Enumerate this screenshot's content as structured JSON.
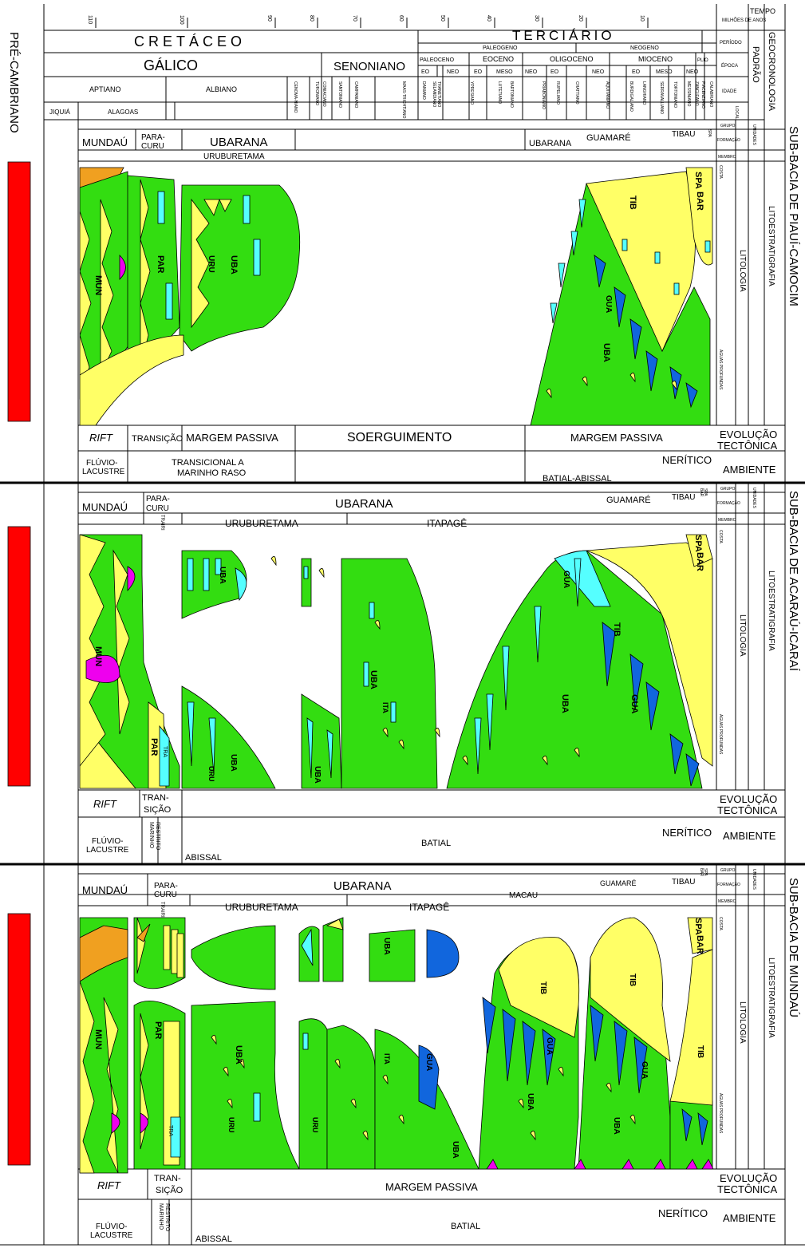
{
  "time_scale": {
    "header": "TEMPO MILHÕES DE ANOS",
    "ticks": [
      "110",
      "100",
      "90",
      "80",
      "70",
      "60",
      "50",
      "40",
      "30",
      "20",
      "10"
    ],
    "pre_cambrian": "PRÉ-CAMBRIANO"
  },
  "chronostrat": {
    "periods": [
      "CRETÁCEO",
      "TERCIÁRIO"
    ],
    "tertiary_sub": [
      "PALEOGENO",
      "NEOGENO"
    ],
    "periodo_small": [
      "QUATER.",
      "PLEIST."
    ],
    "epochs": [
      "GÁLICO",
      "SENONIANO",
      "PALEOCENO",
      "EOCENO",
      "OLIGOCENO",
      "MIOCENO",
      "PLIO"
    ],
    "sub_epochs": [
      "EO",
      "NEO",
      "EO",
      "MESO",
      "NEO",
      "EO",
      "NEO",
      "EO",
      "MESO",
      "NEO"
    ],
    "ages": [
      "APTIANO",
      "ALBIANO",
      "CENOMA-NIANO",
      "TURONIANO",
      "CONIACIANO",
      "SANTONIANO",
      "CAMPANIANO",
      "MAAS-TRICHTIANO",
      "DANIANO",
      "SELANDIANO",
      "THANETIANO",
      "YPRESIANO",
      "LUTETIANO",
      "BARTONIANO",
      "PRIABONIANO",
      "RUPELIANO",
      "CHATTIANO",
      "AQUITANIANO",
      "BURDIGALIANO",
      "LANGHIANO",
      "SERRAVALLIANO",
      "TORTONIANO",
      "MESSINIANO",
      "ZANCLEANO",
      "PIACENZIANO",
      "CALABRIANO"
    ],
    "local_stages": [
      "JIQUIÁ",
      "ALAGOAS"
    ],
    "right_labels": [
      "PERÍODO",
      "ÉPOCA",
      "IDADE",
      "LOCAL",
      "PADRÃO",
      "GEOCRONOLOGIA"
    ]
  },
  "unit_labels": [
    "GRUPO",
    "FORMAÇÃO",
    "MEMBRO",
    "UNIDADES"
  ],
  "litho_labels": {
    "costa": "COSTA",
    "profundas": "ÁGUAS PROFUNDAS",
    "litologia": "LITOLOGIA",
    "litoestratigrafia": "LITOESTRATIGRAFIA"
  },
  "colors": {
    "green": "#33dd11",
    "yellow": "#ffff66",
    "cyan": "#55ffff",
    "blue": "#1166dd",
    "orange": "#f0a020",
    "magenta": "#ee00ee",
    "red": "#ff0000"
  },
  "panels": [
    {
      "basin": "SUB-BACIA DE PIAUÍ-CAMOCIM",
      "formations": [
        "MUNDAÚ",
        "PARA-CURU",
        "UBARANA",
        "UBARANA",
        "GUAMARÉ",
        "TIBAU",
        "SPA"
      ],
      "members": [
        "URUBURETAMA"
      ],
      "units": [
        "MUN",
        "PAR",
        "URU",
        "UBA",
        "TIB",
        "GUA",
        "UBA",
        "SPA",
        "BAR"
      ],
      "tectonics": [
        "RIFT",
        "TRANSIÇÃO",
        "MARGEM PASSIVA",
        "SOERGUIMENTO",
        "MARGEM PASSIVA"
      ],
      "tectonics_title": "EVOLUÇÃO TECTÔNICA",
      "environments": [
        "FLÚVIO-LACUSTRE",
        "TRANSICIONAL A MARINHO RASO",
        "NERÍTICO",
        "BATIAL-ABISSAL"
      ],
      "environment_title": "AMBIENTE"
    },
    {
      "basin": "SUB-BACIA DE ACARAÚ-ICARAÍ",
      "formations": [
        "MUNDAÚ",
        "PARA-CURU",
        "UBARANA",
        "GUAMARÉ",
        "TIBAU",
        "SPA",
        "BAR"
      ],
      "members": [
        "TRAIRI",
        "URUBURETAMA",
        "ITAPAGÊ"
      ],
      "units": [
        "MUN",
        "PAR",
        "TRA",
        "URU",
        "UBA",
        "UBA",
        "UBA",
        "UBA",
        "ITA",
        "GUA",
        "UBA",
        "GUA",
        "TIB",
        "SPA",
        "BAR"
      ],
      "tectonics": [
        "RIFT",
        "TRAN-SIÇÃO"
      ],
      "tectonics_title": "EVOLUÇÃO TECTÔNICA",
      "environments": [
        "FLÚVIO-LACUSTRE",
        "MARINHO RESTRITO",
        "ABISSAL",
        "BATIAL",
        "NERÍTICO"
      ],
      "environment_title": "AMBIENTE"
    },
    {
      "basin": "SUB-BACIA DE MUNDAÚ",
      "formations": [
        "MUNDAÚ",
        "PARA-CURU",
        "UBARANA",
        "MACAU",
        "GUAMARÉ",
        "TIBAU",
        "SPA",
        "BAR"
      ],
      "members": [
        "TRAIRI",
        "URUBURETAMA",
        "ITAPAGÊ"
      ],
      "units": [
        "MUN",
        "PAR",
        "TRA",
        "UBA",
        "URU",
        "URU",
        "UBA",
        "ITA",
        "GUA",
        "UBA",
        "TIB",
        "GUA",
        "UBA",
        "TIB",
        "GUA",
        "UBA",
        "TIB",
        "SPA",
        "BAR",
        "UBA"
      ],
      "tectonics": [
        "RIFT",
        "TRAN-SIÇÃO",
        "MARGEM PASSIVA"
      ],
      "tectonics_title": "EVOLUÇÃO TECTÔNICA",
      "environments": [
        "FLÚVIO-LACUSTRE",
        "MARINHO RESTRITO",
        "ABISSAL",
        "BATIAL",
        "NERÍTICO"
      ],
      "environment_title": "AMBIENTE"
    }
  ]
}
